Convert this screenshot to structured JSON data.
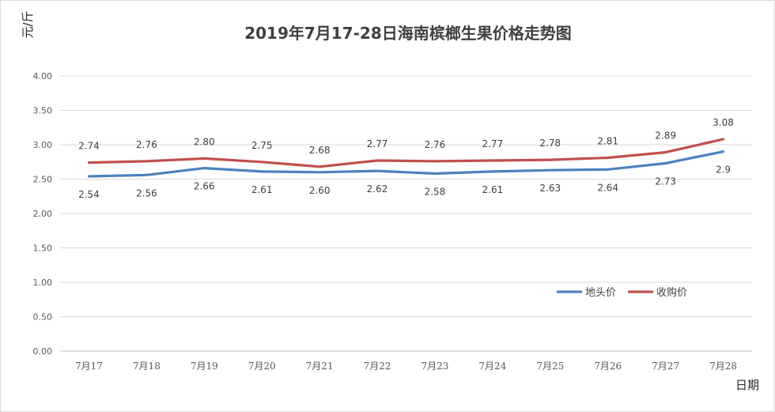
{
  "chart_data": {
    "type": "line",
    "title": "2019年7月17-28日海南槟榔生果价格走势图",
    "ylabel": "元/斤",
    "xlabel": "日期",
    "ylim": [
      0,
      4
    ],
    "yticks": [
      "0.00",
      "0.50",
      "1.00",
      "1.50",
      "2.00",
      "2.50",
      "3.00",
      "3.50",
      "4.00"
    ],
    "ytick_values": [
      0,
      0.5,
      1.0,
      1.5,
      2.0,
      2.5,
      3.0,
      3.5,
      4.0
    ],
    "categories": [
      "7月17",
      "7月18",
      "7月19",
      "7月20",
      "7月21",
      "7月22",
      "7月23",
      "7月24",
      "7月25",
      "7月26",
      "7月27",
      "7月28"
    ],
    "grid": true,
    "legend_position": "right",
    "series": [
      {
        "name": "地头价",
        "color": "#4f81bd",
        "values": [
          2.54,
          2.56,
          2.66,
          2.61,
          2.6,
          2.62,
          2.58,
          2.61,
          2.63,
          2.64,
          2.73,
          2.9
        ],
        "labels": [
          "2.54",
          "2.56",
          "2.66",
          "2.61",
          "2.60",
          "2.62",
          "2.58",
          "2.61",
          "2.63",
          "2.64",
          "2.73",
          "2.9"
        ],
        "label_position": "below"
      },
      {
        "name": "收购价",
        "color": "#c0504d",
        "values": [
          2.74,
          2.76,
          2.8,
          2.75,
          2.68,
          2.77,
          2.76,
          2.77,
          2.78,
          2.81,
          2.89,
          3.08
        ],
        "labels": [
          "2.74",
          "2.76",
          "2.80",
          "2.75",
          "2.68",
          "2.77",
          "2.76",
          "2.77",
          "2.78",
          "2.81",
          "2.89",
          "3.08"
        ],
        "label_position": "above"
      }
    ]
  }
}
